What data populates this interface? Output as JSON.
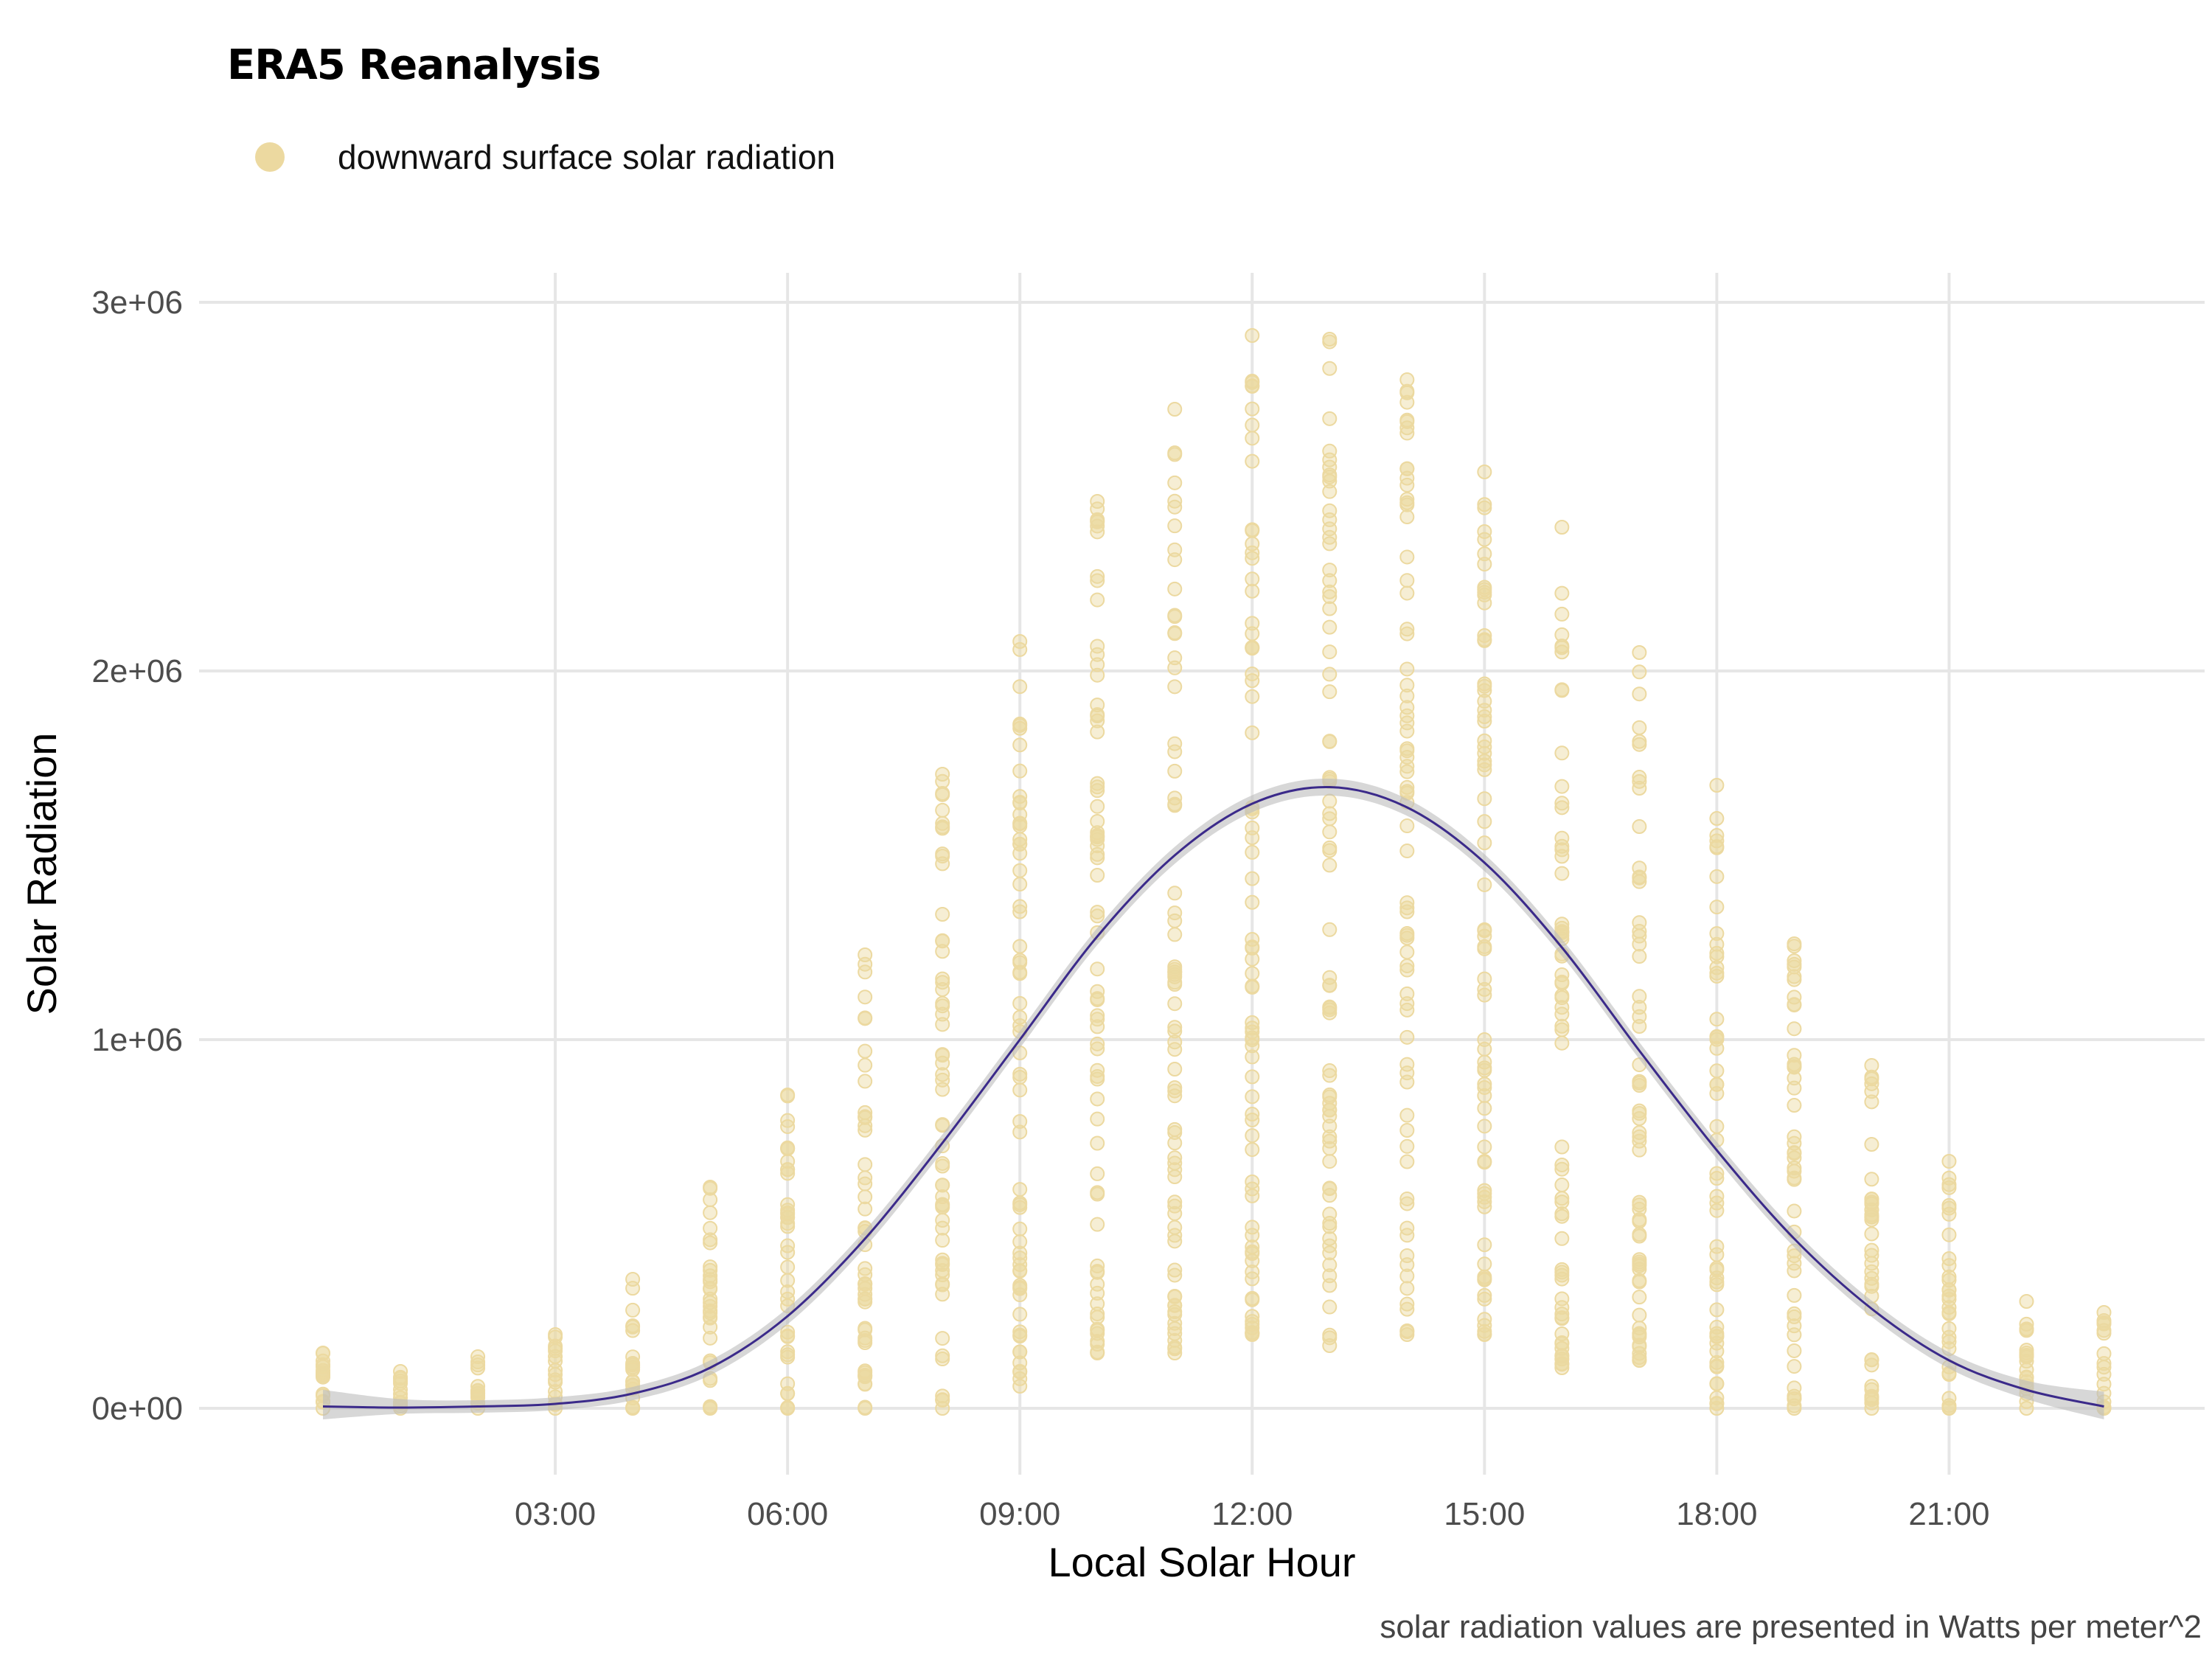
{
  "chart_data": {
    "type": "scatter",
    "title": "ERA5 Reanalysis",
    "legend": {
      "position": "top-left",
      "entries": [
        {
          "label": "downward surface solar radiation",
          "color": "#ecd9a0"
        }
      ]
    },
    "xlabel": "Local Solar Hour",
    "ylabel": "Solar Radiation",
    "caption": "solar radiation values are presented in Watts per meter^2",
    "xlim": [
      -1.6,
      24.3
    ],
    "ylim": [
      -180000,
      3080000
    ],
    "x_ticks": [
      {
        "value": 3,
        "label": "03:00"
      },
      {
        "value": 6,
        "label": "06:00"
      },
      {
        "value": 9,
        "label": "09:00"
      },
      {
        "value": 12,
        "label": "12:00"
      },
      {
        "value": 15,
        "label": "15:00"
      },
      {
        "value": 18,
        "label": "18:00"
      },
      {
        "value": 21,
        "label": "21:00"
      }
    ],
    "y_ticks": [
      {
        "value": 0,
        "label": "0e+00"
      },
      {
        "value": 1000000,
        "label": "1e+06"
      },
      {
        "value": 2000000,
        "label": "2e+06"
      },
      {
        "value": 3000000,
        "label": "3e+06"
      }
    ],
    "grid": true,
    "point_color": "#ecd9a0",
    "hourly_ranges": [
      {
        "hour": 0,
        "min": 0,
        "max": 150000,
        "n": 14
      },
      {
        "hour": 1,
        "min": 0,
        "max": 100000,
        "n": 10
      },
      {
        "hour": 2,
        "min": 0,
        "max": 140000,
        "n": 12
      },
      {
        "hour": 3,
        "min": 0,
        "max": 200000,
        "n": 14
      },
      {
        "hour": 4,
        "min": 0,
        "max": 350000,
        "n": 20
      },
      {
        "hour": 5,
        "min": 0,
        "max": 600000,
        "n": 28
      },
      {
        "hour": 6,
        "min": 0,
        "max": 850000,
        "n": 36
      },
      {
        "hour": 7,
        "min": 0,
        "max": 1230000,
        "n": 45
      },
      {
        "hour": 8,
        "min": 0,
        "max": 1720000,
        "n": 55
      },
      {
        "hour": 9,
        "min": 60000,
        "max": 2080000,
        "n": 62
      },
      {
        "hour": 10,
        "min": 150000,
        "max": 2460000,
        "n": 68
      },
      {
        "hour": 11,
        "min": 150000,
        "max": 2710000,
        "n": 70
      },
      {
        "hour": 12,
        "min": 200000,
        "max": 2910000,
        "n": 72
      },
      {
        "hour": 13,
        "min": 170000,
        "max": 2900000,
        "n": 72
      },
      {
        "hour": 14,
        "min": 200000,
        "max": 2790000,
        "n": 70
      },
      {
        "hour": 15,
        "min": 200000,
        "max": 2540000,
        "n": 68
      },
      {
        "hour": 16,
        "min": 110000,
        "max": 2390000,
        "n": 64
      },
      {
        "hour": 17,
        "min": 130000,
        "max": 2050000,
        "n": 58
      },
      {
        "hour": 18,
        "min": 0,
        "max": 1690000,
        "n": 52
      },
      {
        "hour": 19,
        "min": 0,
        "max": 1260000,
        "n": 44
      },
      {
        "hour": 20,
        "min": 0,
        "max": 930000,
        "n": 36
      },
      {
        "hour": 21,
        "min": 0,
        "max": 670000,
        "n": 28
      },
      {
        "hour": 22,
        "min": 0,
        "max": 290000,
        "n": 18
      },
      {
        "hour": 23,
        "min": 0,
        "max": 260000,
        "n": 14
      }
    ],
    "smooth_line": {
      "color": "#3b2a8a",
      "band_color": "#bdbdbd",
      "points": [
        {
          "x": 0,
          "y": 5000,
          "lo": -30000,
          "hi": 50000
        },
        {
          "x": 1,
          "y": 2000,
          "lo": -15000,
          "hi": 25000
        },
        {
          "x": 2,
          "y": 5000,
          "lo": -12000,
          "hi": 22000
        },
        {
          "x": 3,
          "y": 12000,
          "lo": -5000,
          "hi": 30000
        },
        {
          "x": 4,
          "y": 40000,
          "lo": 22000,
          "hi": 58000
        },
        {
          "x": 5,
          "y": 110000,
          "lo": 90000,
          "hi": 130000
        },
        {
          "x": 6,
          "y": 250000,
          "lo": 228000,
          "hi": 272000
        },
        {
          "x": 7,
          "y": 460000,
          "lo": 437000,
          "hi": 483000
        },
        {
          "x": 8,
          "y": 720000,
          "lo": 697000,
          "hi": 743000
        },
        {
          "x": 9,
          "y": 1000000,
          "lo": 977000,
          "hi": 1023000
        },
        {
          "x": 10,
          "y": 1280000,
          "lo": 1257000,
          "hi": 1303000
        },
        {
          "x": 11,
          "y": 1500000,
          "lo": 1477000,
          "hi": 1523000
        },
        {
          "x": 12,
          "y": 1640000,
          "lo": 1617000,
          "hi": 1663000
        },
        {
          "x": 13,
          "y": 1685000,
          "lo": 1662000,
          "hi": 1708000
        },
        {
          "x": 14,
          "y": 1630000,
          "lo": 1607000,
          "hi": 1653000
        },
        {
          "x": 15,
          "y": 1480000,
          "lo": 1457000,
          "hi": 1503000
        },
        {
          "x": 16,
          "y": 1250000,
          "lo": 1227000,
          "hi": 1273000
        },
        {
          "x": 17,
          "y": 970000,
          "lo": 947000,
          "hi": 993000
        },
        {
          "x": 18,
          "y": 700000,
          "lo": 677000,
          "hi": 723000
        },
        {
          "x": 19,
          "y": 460000,
          "lo": 437000,
          "hi": 483000
        },
        {
          "x": 20,
          "y": 270000,
          "lo": 248000,
          "hi": 292000
        },
        {
          "x": 21,
          "y": 130000,
          "lo": 108000,
          "hi": 152000
        },
        {
          "x": 22,
          "y": 50000,
          "lo": 25000,
          "hi": 75000
        },
        {
          "x": 23,
          "y": 5000,
          "lo": -30000,
          "hi": 45000
        }
      ]
    }
  }
}
